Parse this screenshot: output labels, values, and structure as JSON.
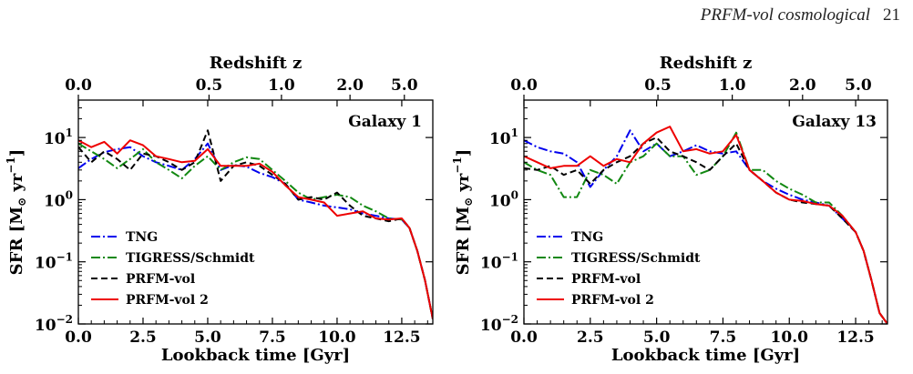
{
  "page": {
    "running_title": "PRFM-vol cosmological",
    "page_number": "21"
  },
  "chart_data": [
    {
      "type": "line",
      "title": "Galaxy 1",
      "xlabel": "Lookback time [Gyr]",
      "ylabel": "SFR [M⊙ yr⁻¹]",
      "ylabel_parts": {
        "base": "SFR [M",
        "sub": "⊙",
        "mid": " yr",
        "sup": "−1",
        "end": "]"
      },
      "top_xlabel": "Redshift z",
      "xlim": [
        0,
        13.7
      ],
      "ylim": [
        0.01,
        40
      ],
      "yscale": "log",
      "xticks": [
        0,
        2.5,
        5,
        7.5,
        10,
        12.5
      ],
      "xtick_labels": [
        "0.0",
        "2.5",
        "5.0",
        "7.5",
        "10.0",
        "12.5"
      ],
      "yticks": [
        0.01,
        0.1,
        1,
        10
      ],
      "ytick_labels": [
        {
          "base": "10",
          "exp": "−2"
        },
        {
          "base": "10",
          "exp": "−1"
        },
        {
          "base": "10",
          "exp": "0"
        },
        {
          "base": "10",
          "exp": "1"
        }
      ],
      "top_ticks": [
        {
          "label": "0.0",
          "t": 0.0
        },
        {
          "label": "0.5",
          "t": 5.05
        },
        {
          "label": "1.0",
          "t": 7.85
        },
        {
          "label": "2.0",
          "t": 10.5
        },
        {
          "label": "5.0",
          "t": 12.6
        }
      ],
      "legend_loc": "lower-left",
      "series": [
        {
          "name": "TNG",
          "color": "#0000ee",
          "dash": "10 3 2 3",
          "x": [
            0,
            0.5,
            1.0,
            1.5,
            2.0,
            2.5,
            3.0,
            3.5,
            4.0,
            4.5,
            5.0,
            5.5,
            6.0,
            6.5,
            7.0,
            7.5,
            8.0,
            8.5,
            9.0,
            9.5,
            10.0,
            10.5,
            11.0,
            11.5,
            12.0,
            12.5,
            12.8,
            13.1,
            13.4,
            13.7
          ],
          "y": [
            3.2,
            4.5,
            5.8,
            6.5,
            7.0,
            5.0,
            4.0,
            3.5,
            3.0,
            4.5,
            8.0,
            3.0,
            3.6,
            3.4,
            2.7,
            2.3,
            1.8,
            1.0,
            0.9,
            0.8,
            0.75,
            0.7,
            0.6,
            0.55,
            0.5,
            0.48,
            0.35,
            0.15,
            0.05,
            0.012
          ]
        },
        {
          "name": "TIGRESS/Schmidt",
          "color": "#118811",
          "dash": "10 3 2 3",
          "x": [
            0,
            0.5,
            1.0,
            1.5,
            2.0,
            2.5,
            3.0,
            3.5,
            4.0,
            4.5,
            5.0,
            5.5,
            6.0,
            6.5,
            7.0,
            7.5,
            8.0,
            8.5,
            9.0,
            9.5,
            10.0,
            10.5,
            11.0,
            11.5,
            12.0,
            12.5,
            12.8,
            13.1,
            13.4,
            13.7
          ],
          "y": [
            8.0,
            6.0,
            4.5,
            3.2,
            4.5,
            6.5,
            4.0,
            3.0,
            2.2,
            3.5,
            5.0,
            3.0,
            4.0,
            4.8,
            4.5,
            3.0,
            2.0,
            1.3,
            1.0,
            1.1,
            1.2,
            1.1,
            0.8,
            0.65,
            0.5,
            0.48,
            0.35,
            0.15,
            0.05,
            0.012
          ]
        },
        {
          "name": "PRFM-vol",
          "color": "#000000",
          "dash": "7 4",
          "x": [
            0,
            0.5,
            1.0,
            1.5,
            2.0,
            2.5,
            3.0,
            3.5,
            4.0,
            4.5,
            5.0,
            5.5,
            6.0,
            6.5,
            7.0,
            7.5,
            8.0,
            8.5,
            9.0,
            9.5,
            10.0,
            10.5,
            11.0,
            11.5,
            12.0,
            12.5,
            12.8,
            13.1,
            13.4,
            13.7
          ],
          "y": [
            7.0,
            4.0,
            6.0,
            4.5,
            3.0,
            5.5,
            5.0,
            4.0,
            3.0,
            4.0,
            13.0,
            2.0,
            3.5,
            4.0,
            3.5,
            2.5,
            1.8,
            1.0,
            1.1,
            1.0,
            1.3,
            0.8,
            0.55,
            0.5,
            0.45,
            0.5,
            0.35,
            0.15,
            0.05,
            0.012
          ]
        },
        {
          "name": "PRFM-vol 2",
          "color": "#ee0000",
          "dash": "",
          "x": [
            0,
            0.5,
            1.0,
            1.5,
            2.0,
            2.5,
            3.0,
            3.5,
            4.0,
            4.5,
            5.0,
            5.5,
            6.0,
            6.5,
            7.0,
            7.5,
            8.0,
            8.5,
            9.0,
            9.5,
            10.0,
            10.5,
            11.0,
            11.5,
            12.0,
            12.5,
            12.8,
            13.1,
            13.4,
            13.7
          ],
          "y": [
            9.0,
            7.0,
            8.5,
            5.5,
            9.0,
            7.5,
            5.0,
            4.5,
            4.0,
            4.2,
            6.5,
            3.5,
            3.5,
            3.5,
            3.8,
            2.8,
            1.7,
            1.1,
            1.0,
            0.9,
            0.55,
            0.6,
            0.65,
            0.5,
            0.48,
            0.5,
            0.35,
            0.15,
            0.05,
            0.012
          ]
        }
      ]
    },
    {
      "type": "line",
      "title": "Galaxy 13",
      "xlabel": "Lookback time [Gyr]",
      "ylabel": "SFR [M⊙ yr⁻¹]",
      "ylabel_parts": {
        "base": "SFR [M",
        "sub": "⊙",
        "mid": " yr",
        "sup": "−1",
        "end": "]"
      },
      "top_xlabel": "Redshift z",
      "xlim": [
        0,
        13.7
      ],
      "ylim": [
        0.01,
        40
      ],
      "yscale": "log",
      "xticks": [
        0,
        2.5,
        5,
        7.5,
        10,
        12.5
      ],
      "xtick_labels": [
        "0.0",
        "2.5",
        "5.0",
        "7.5",
        "10.0",
        "12.5"
      ],
      "yticks": [
        0.01,
        0.1,
        1,
        10
      ],
      "ytick_labels": [
        {
          "base": "10",
          "exp": "−2"
        },
        {
          "base": "10",
          "exp": "−1"
        },
        {
          "base": "10",
          "exp": "0"
        },
        {
          "base": "10",
          "exp": "1"
        }
      ],
      "top_ticks": [
        {
          "label": "0.0",
          "t": 0.0
        },
        {
          "label": "0.5",
          "t": 5.05
        },
        {
          "label": "1.0",
          "t": 7.85
        },
        {
          "label": "2.0",
          "t": 10.5
        },
        {
          "label": "5.0",
          "t": 12.6
        }
      ],
      "legend_loc": "lower-left",
      "series": [
        {
          "name": "TNG",
          "color": "#0000ee",
          "dash": "10 3 2 3",
          "x": [
            0,
            0.5,
            1.0,
            1.5,
            2.0,
            2.5,
            3.0,
            3.5,
            4.0,
            4.5,
            5.0,
            5.5,
            6.0,
            6.5,
            7.0,
            7.5,
            8.0,
            8.5,
            9.0,
            9.5,
            10.0,
            10.5,
            11.0,
            11.5,
            12.0,
            12.5,
            12.8,
            13.1,
            13.4,
            13.7
          ],
          "y": [
            9.0,
            7.0,
            6.0,
            5.5,
            4.0,
            1.6,
            3.0,
            5.0,
            13.0,
            6.0,
            8.0,
            5.0,
            6.0,
            7.5,
            6.0,
            5.5,
            6.0,
            3.0,
            2.0,
            1.5,
            1.2,
            1.0,
            0.9,
            0.8,
            0.5,
            0.3,
            0.15,
            0.05,
            0.015,
            0.01
          ]
        },
        {
          "name": "TIGRESS/Schmidt",
          "color": "#118811",
          "dash": "10 3 2 3",
          "x": [
            0,
            0.5,
            1.0,
            1.5,
            2.0,
            2.5,
            3.0,
            3.5,
            4.0,
            4.5,
            5.0,
            5.5,
            6.0,
            6.5,
            7.0,
            7.5,
            8.0,
            8.5,
            9.0,
            9.5,
            10.0,
            10.5,
            11.0,
            11.5,
            12.0,
            12.5,
            12.8,
            13.1,
            13.4,
            13.7
          ],
          "y": [
            4.0,
            3.0,
            2.5,
            1.1,
            1.1,
            3.0,
            2.5,
            1.8,
            4.0,
            5.0,
            8.0,
            5.0,
            5.0,
            2.5,
            3.0,
            5.0,
            12.0,
            3.0,
            3.0,
            2.0,
            1.5,
            1.2,
            0.9,
            0.9,
            0.55,
            0.3,
            0.15,
            0.05,
            0.015,
            0.01
          ]
        },
        {
          "name": "PRFM-vol",
          "color": "#000000",
          "dash": "7 4",
          "x": [
            0,
            0.5,
            1.0,
            1.5,
            2.0,
            2.5,
            3.0,
            3.5,
            4.0,
            4.5,
            5.0,
            5.5,
            6.0,
            6.5,
            7.0,
            7.5,
            8.0,
            8.5,
            9.0,
            9.5,
            10.0,
            10.5,
            11.0,
            11.5,
            12.0,
            12.5,
            12.8,
            13.1,
            13.4,
            13.7
          ],
          "y": [
            3.2,
            3.0,
            3.5,
            2.5,
            3.0,
            1.8,
            3.0,
            4.0,
            5.0,
            8.0,
            10.0,
            6.0,
            5.0,
            4.0,
            3.0,
            5.0,
            8.0,
            3.0,
            2.0,
            1.3,
            1.0,
            0.9,
            0.85,
            0.8,
            0.5,
            0.3,
            0.15,
            0.05,
            0.015,
            0.01
          ]
        },
        {
          "name": "PRFM-vol 2",
          "color": "#ee0000",
          "dash": "",
          "x": [
            0,
            0.5,
            1.0,
            1.5,
            2.0,
            2.5,
            3.0,
            3.5,
            4.0,
            4.5,
            5.0,
            5.5,
            6.0,
            6.5,
            7.0,
            7.5,
            8.0,
            8.5,
            9.0,
            9.5,
            10.0,
            10.5,
            11.0,
            11.5,
            12.0,
            12.5,
            12.8,
            13.1,
            13.4,
            13.7
          ],
          "y": [
            5.0,
            4.0,
            3.2,
            3.5,
            3.5,
            5.0,
            3.5,
            4.5,
            4.0,
            8.0,
            12.0,
            15.0,
            6.0,
            6.5,
            5.5,
            6.0,
            11.0,
            3.0,
            2.0,
            1.3,
            1.0,
            0.95,
            0.85,
            0.8,
            0.55,
            0.3,
            0.15,
            0.05,
            0.015,
            0.01
          ]
        }
      ]
    }
  ]
}
